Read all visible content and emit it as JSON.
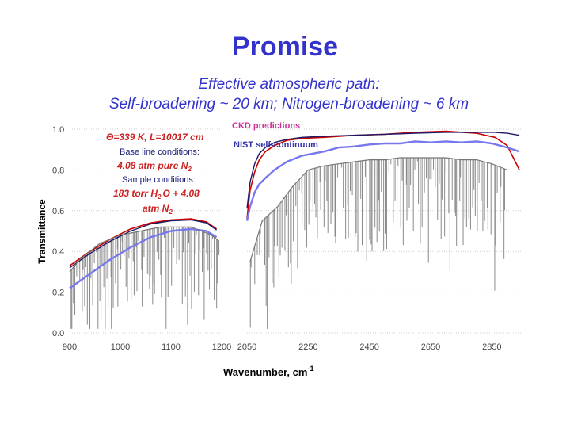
{
  "header": {
    "title": "Promise",
    "subtitle_line1": "Effective atmospheric path:",
    "subtitle_line2": "Self-broadening ~ 20 km; Nitrogen-broadening ~ 6 km"
  },
  "chart_data": {
    "type": "line",
    "ylabel": "Transmittance",
    "xlabel_main": "Wavenumber, cm",
    "xlabel_sup": "-1",
    "ylim": [
      0.0,
      1.0
    ],
    "yticks": [
      "0.0",
      "0.2",
      "0.4",
      "0.6",
      "0.8",
      "1.0"
    ],
    "panels": [
      {
        "xlim": [
          900,
          1200
        ],
        "xticks": [
          "900",
          "1000",
          "1100",
          "1200"
        ]
      },
      {
        "xlim": [
          2050,
          2950
        ],
        "xticks": [
          "2050",
          "2250",
          "2450",
          "2650",
          "2850"
        ]
      }
    ],
    "annotations": {
      "conditions": "Θ=339 K, L=10017 cm",
      "baseline_label": "Base line conditions:",
      "baseline_value": "4.08 atm pure N",
      "baseline_sub": "2",
      "sample_label": "Sample conditions:",
      "sample_value_a": "183 torr H",
      "sample_value_sub1": "2",
      "sample_value_b": "O + 4.08",
      "sample_value_c": "atm N",
      "sample_value_sub2": "2"
    },
    "legend": {
      "ckd": "CKD predictions",
      "nist": "NIST self-continuum"
    },
    "series": [
      {
        "name": "CKD predictions",
        "color": "#cc0000",
        "segments": [
          {
            "x": [
              900,
              940,
              980,
              1020,
              1060,
              1100,
              1140,
              1170,
              1190
            ],
            "y": [
              0.33,
              0.4,
              0.46,
              0.51,
              0.54,
              0.555,
              0.56,
              0.545,
              0.51
            ]
          },
          {
            "x": [
              2050,
              2060,
              2075,
              2090,
              2110,
              2140,
              2180,
              2230,
              2300,
              2400,
              2500,
              2600,
              2700,
              2800,
              2860,
              2900,
              2920,
              2940
            ],
            "y": [
              0.56,
              0.7,
              0.79,
              0.85,
              0.89,
              0.92,
              0.945,
              0.955,
              0.96,
              0.97,
              0.975,
              0.985,
              0.99,
              0.98,
              0.96,
              0.92,
              0.86,
              0.8
            ]
          }
        ]
      },
      {
        "color": "#1a1a66",
        "segments": [
          {
            "x": [
              900,
              940,
              980,
              1020,
              1060,
              1100,
              1140,
              1170,
              1190
            ],
            "y": [
              0.32,
              0.39,
              0.45,
              0.5,
              0.535,
              0.55,
              0.555,
              0.54,
              0.505
            ]
          },
          {
            "x": [
              2050,
              2060,
              2075,
              2090,
              2110,
              2140,
              2180,
              2230,
              2300,
              2400,
              2500,
              2600,
              2700,
              2800,
              2860,
              2900,
              2920,
              2940
            ],
            "y": [
              0.61,
              0.74,
              0.83,
              0.88,
              0.91,
              0.935,
              0.95,
              0.96,
              0.965,
              0.97,
              0.975,
              0.98,
              0.985,
              0.985,
              0.985,
              0.98,
              0.975,
              0.97
            ]
          }
        ]
      },
      {
        "name": "NIST self-continuum",
        "color": "#7777ee",
        "segments": [
          {
            "x": [
              900,
              940,
              980,
              1020,
              1060,
              1100,
              1140,
              1170,
              1190
            ],
            "y": [
              0.22,
              0.29,
              0.36,
              0.42,
              0.47,
              0.5,
              0.51,
              0.5,
              0.47
            ]
          },
          {
            "x": [
              2050,
              2060,
              2075,
              2090,
              2110,
              2140,
              2180,
              2230,
              2300,
              2350,
              2400,
              2450,
              2500,
              2550,
              2600,
              2650,
              2700,
              2750,
              2800,
              2850,
              2900,
              2940
            ],
            "y": [
              0.55,
              0.62,
              0.69,
              0.73,
              0.76,
              0.8,
              0.84,
              0.87,
              0.89,
              0.91,
              0.915,
              0.925,
              0.93,
              0.93,
              0.94,
              0.935,
              0.94,
              0.935,
              0.94,
              0.93,
              0.91,
              0.89
            ]
          }
        ]
      },
      {
        "color": "#777777",
        "segments": [
          {
            "x": [
              900,
              920,
              940,
              960,
              980,
              1000,
              1020,
              1040,
              1060,
              1080,
              1100,
              1120,
              1140,
              1160,
              1180,
              1195
            ],
            "y": [
              0.3,
              0.36,
              0.4,
              0.44,
              0.46,
              0.48,
              0.49,
              0.5,
              0.51,
              0.52,
              0.52,
              0.52,
              0.52,
              0.5,
              0.48,
              0.45
            ]
          },
          {
            "x": [
              2060,
              2100,
              2150,
              2200,
              2250,
              2300,
              2350,
              2400,
              2450,
              2500,
              2550,
              2600,
              2650,
              2700,
              2750,
              2800,
              2850,
              2900
            ],
            "y": [
              0.35,
              0.55,
              0.62,
              0.72,
              0.8,
              0.82,
              0.83,
              0.84,
              0.85,
              0.85,
              0.86,
              0.86,
              0.86,
              0.86,
              0.85,
              0.85,
              0.83,
              0.8
            ]
          }
        ]
      }
    ]
  }
}
